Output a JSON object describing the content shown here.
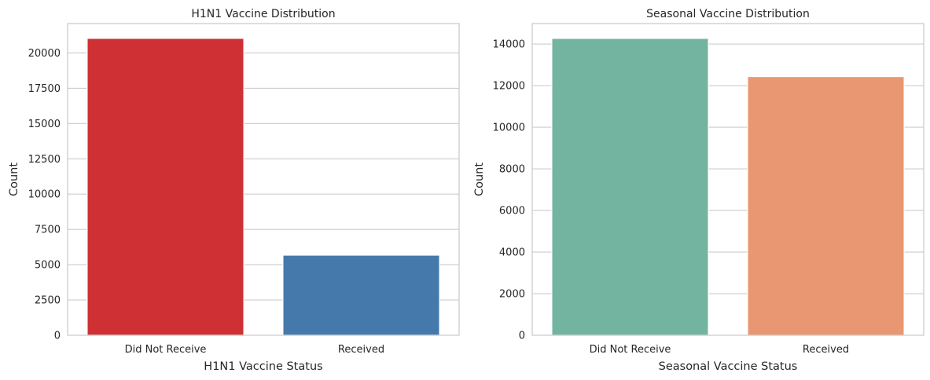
{
  "chart_data": [
    {
      "type": "bar",
      "title": "H1N1 Vaccine Distribution",
      "xlabel": "H1N1 Vaccine Status",
      "ylabel": "Count",
      "categories": [
        "Did Not Receive",
        "Received"
      ],
      "values": [
        21033,
        5674
      ],
      "colors": [
        "#cf3033",
        "#4579ab"
      ],
      "ylim": [
        0,
        22083
      ],
      "yticks": [
        0,
        2500,
        5000,
        7500,
        10000,
        12500,
        15000,
        17500,
        20000
      ],
      "grid": true
    },
    {
      "type": "bar",
      "title": "Seasonal Vaccine Distribution",
      "xlabel": "Seasonal Vaccine Status",
      "ylabel": "Count",
      "categories": [
        "Did Not Receive",
        "Received"
      ],
      "values": [
        14272,
        12435
      ],
      "colors": [
        "#73b4a0",
        "#e89772"
      ],
      "ylim": [
        0,
        14985
      ],
      "yticks": [
        0,
        2000,
        4000,
        6000,
        8000,
        10000,
        12000,
        14000
      ],
      "grid": true
    }
  ]
}
